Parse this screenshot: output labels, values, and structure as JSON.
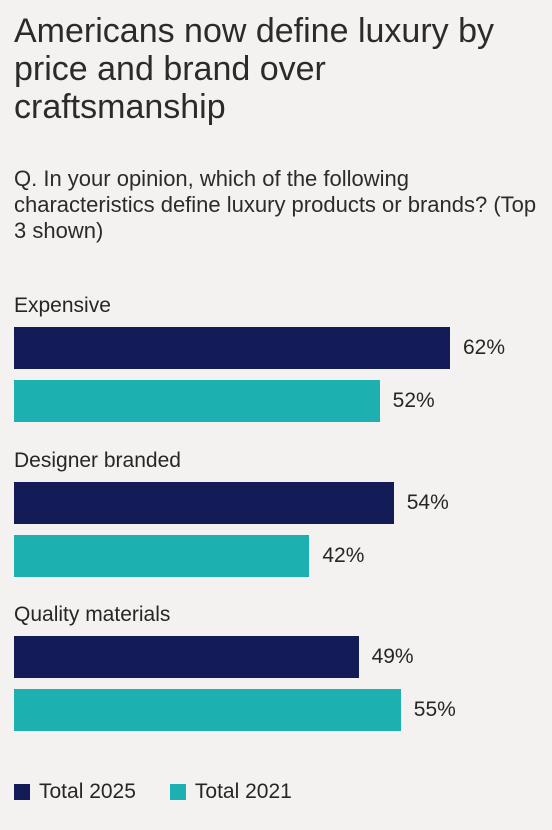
{
  "chart_data": {
    "type": "bar",
    "orientation": "horizontal",
    "title": "Americans now define luxury by price and brand over craftsmanship",
    "subtitle": "Q. In your opinion, which of the following characteristics define luxury products or brands? (Top 3 shown)",
    "categories": [
      "Expensive",
      "Designer branded",
      "Quality materials"
    ],
    "series": [
      {
        "name": "Total 2025",
        "color": "#131c57",
        "values": [
          62,
          54,
          49
        ]
      },
      {
        "name": "Total 2021",
        "color": "#1db0b0",
        "values": [
          52,
          42,
          55
        ]
      }
    ],
    "value_suffix": "%",
    "xlim": [
      0,
      100
    ],
    "grid": false,
    "legend_position": "bottom-left"
  }
}
